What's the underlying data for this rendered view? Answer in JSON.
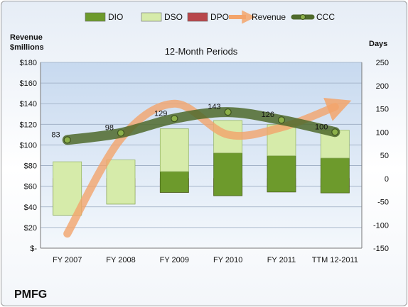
{
  "chart_data": {
    "type": "bar",
    "subtitle": "12-Month Periods",
    "company": "PMFG",
    "left_axis_title": [
      "Revenue",
      "$millions"
    ],
    "right_axis_title": "Days",
    "categories": [
      "FY 2007",
      "FY 2008",
      "FY 2009",
      "FY 2010",
      "FY 2011",
      "TTM 12-2011"
    ],
    "left_ticks": [
      "$-",
      "$20",
      "$40",
      "$60",
      "$80",
      "$100",
      "$120",
      "$140",
      "$160",
      "$180"
    ],
    "left_ylim": [
      0,
      180
    ],
    "right_ticks": [
      "-150",
      "-100",
      "-50",
      "0",
      "50",
      "100",
      "150",
      "200",
      "250"
    ],
    "right_ylim": [
      -150,
      250
    ],
    "legend": [
      "DIO",
      "DSO",
      "DPO",
      "Revenue",
      "CCC"
    ],
    "legend_position": "top",
    "series": [
      {
        "name": "DIO",
        "axis": "right",
        "values": [
          -22,
          -20,
          45,
          92,
          78,
          75
        ],
        "color": "#6d9a2c"
      },
      {
        "name": "DSO",
        "axis": "right",
        "values": [
          115,
          95,
          92,
          70,
          67,
          60
        ],
        "color": "#d6ebaa"
      },
      {
        "name": "DPO",
        "axis": "right",
        "values": [
          -57,
          -35,
          -30,
          -37,
          -29,
          -31
        ],
        "color": "#b8464b"
      },
      {
        "name": "Revenue",
        "axis": "left",
        "values": [
          14,
          106,
          140,
          110,
          117,
          137
        ],
        "color": "#f3a46b"
      },
      {
        "name": "CCC",
        "axis": "right",
        "values": [
          83,
          98,
          129,
          143,
          126,
          100
        ],
        "color": "#4f6a2c"
      }
    ],
    "ccc_labels": [
      "83",
      "98",
      "129",
      "143",
      "126",
      "100"
    ]
  }
}
